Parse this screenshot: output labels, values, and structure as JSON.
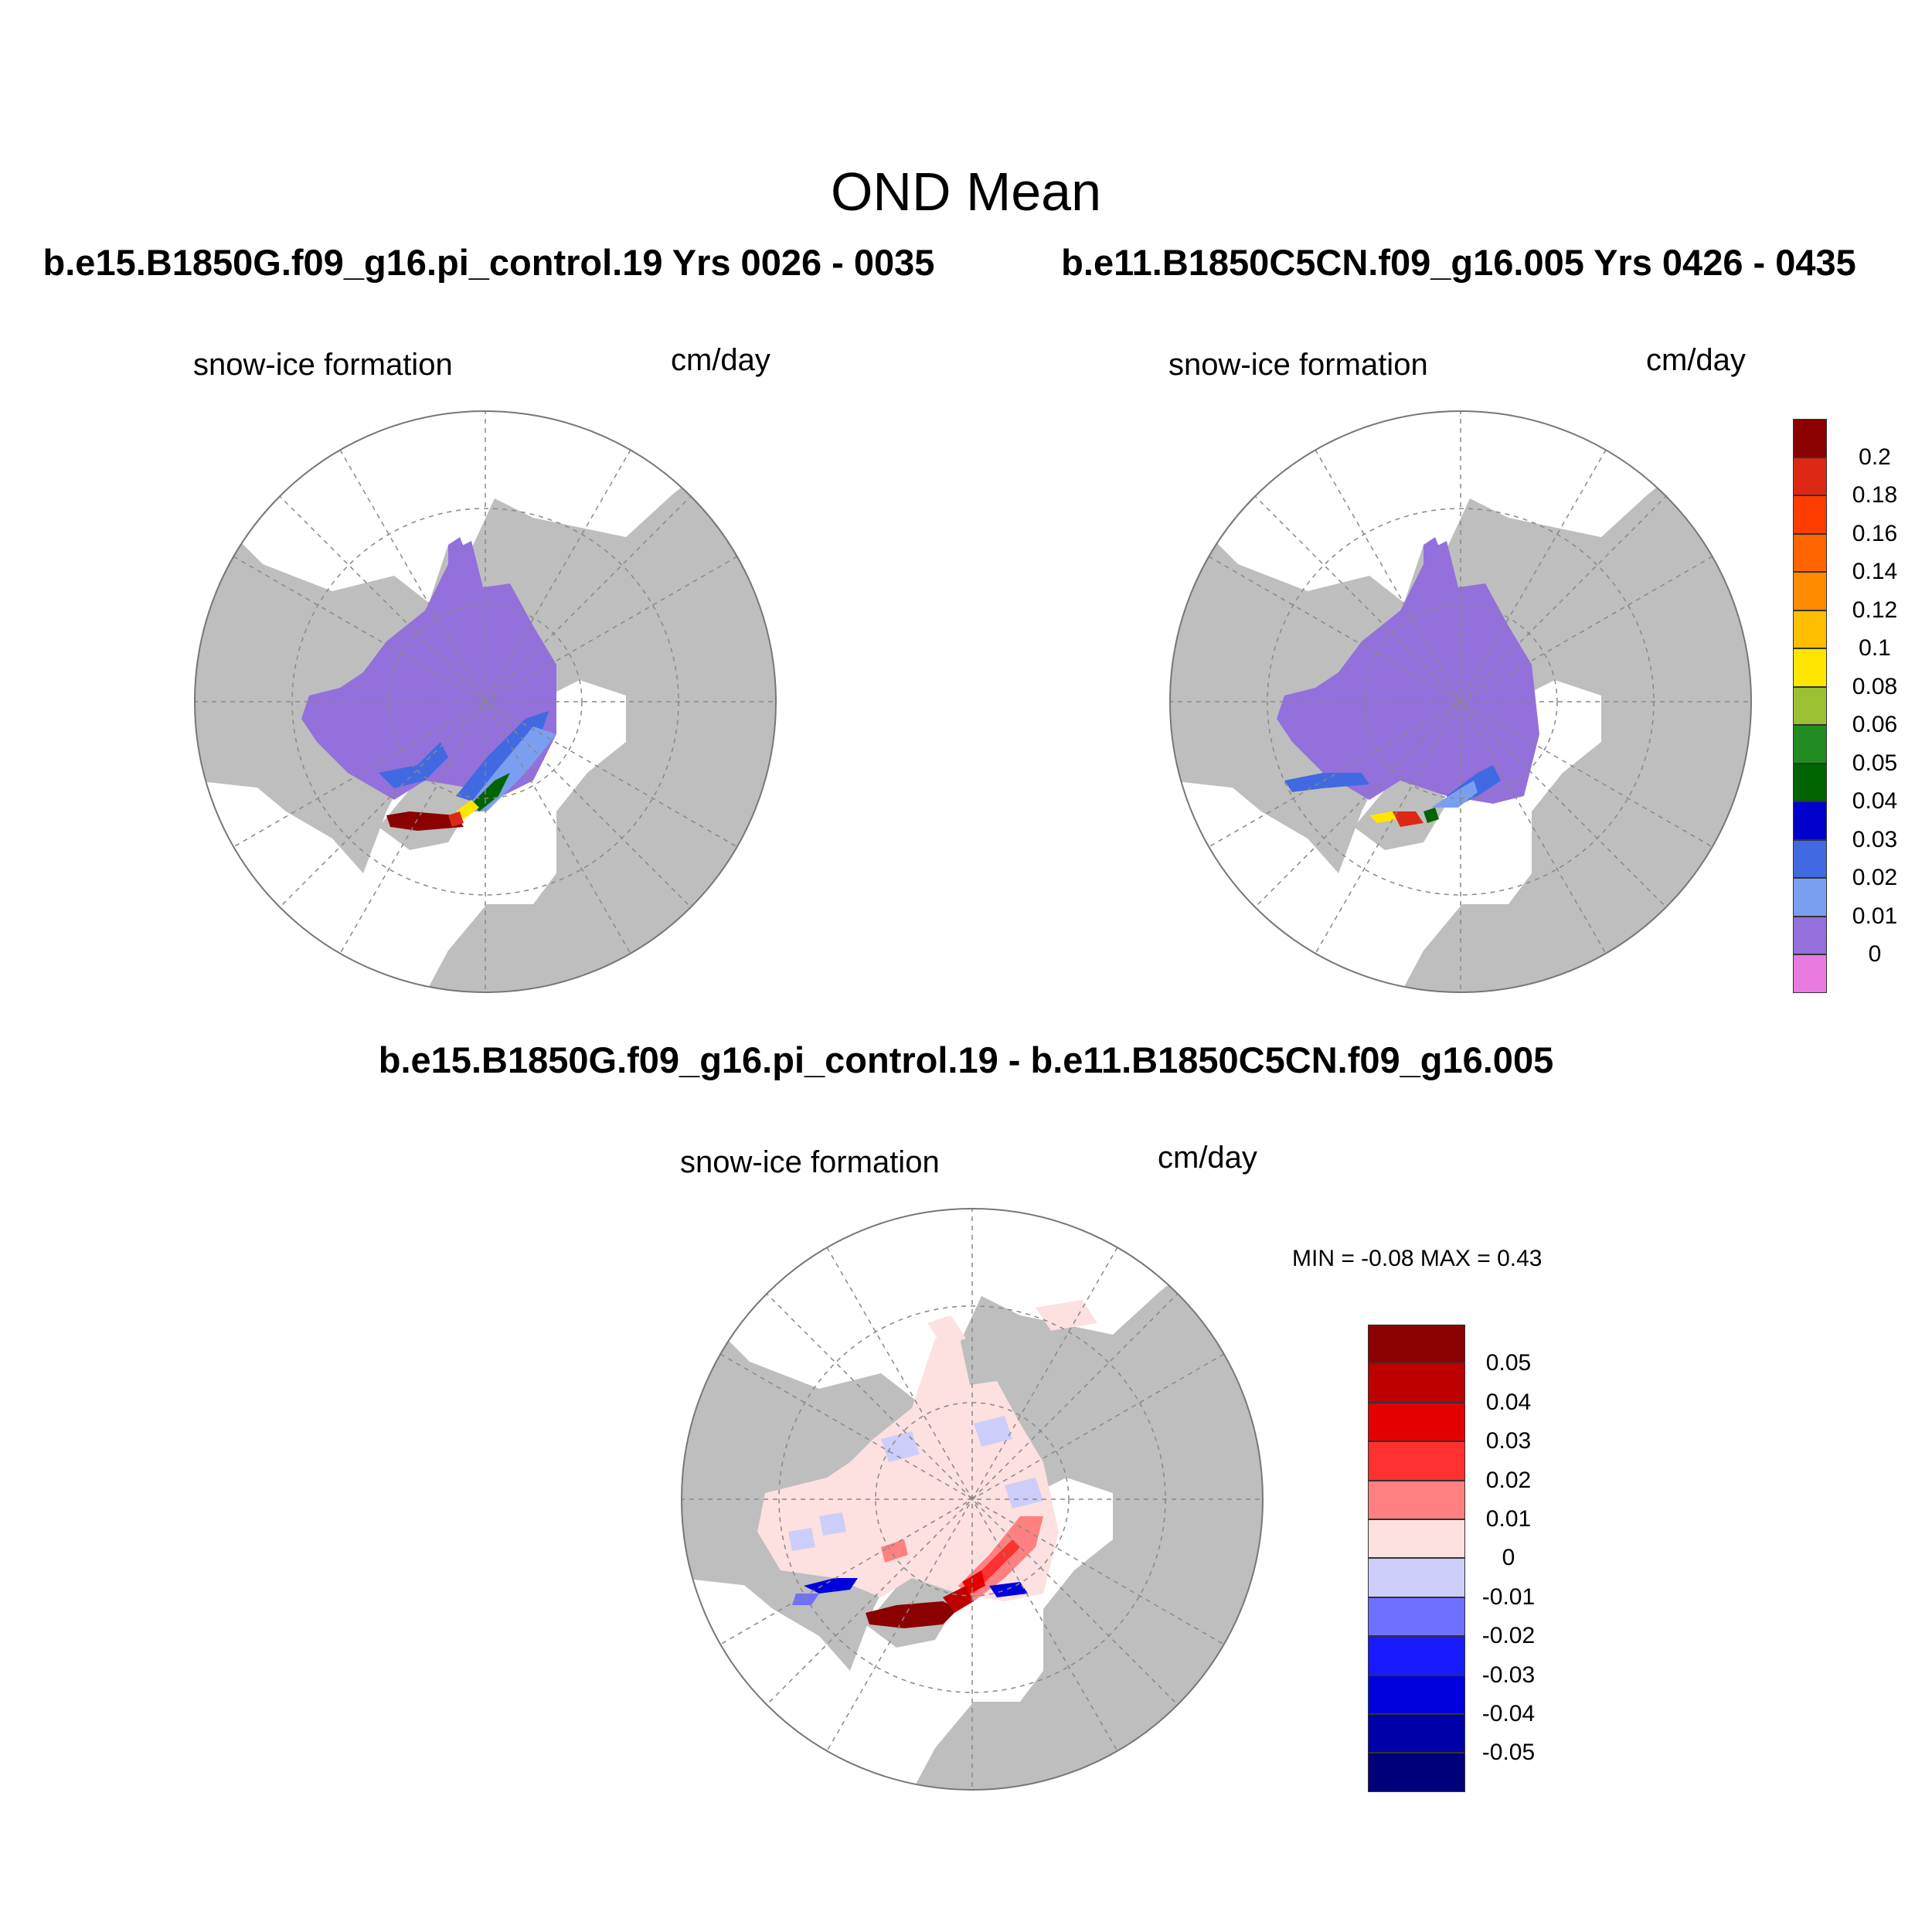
{
  "header": {
    "title": "OND Mean",
    "left_panel": "b.e15.B1850G.f09_g16.pi_control.19  Yrs 0026 - 0035",
    "right_panel": "b.e11.B1850C5CN.f09_g16.005  Yrs 0426 - 0435",
    "difference_panel": "b.e15.B1850G.f09_g16.pi_control.19 - b.e11.B1850C5CN.f09_g16.005"
  },
  "panels": {
    "left": {
      "variable": "snow-ice formation",
      "units": "cm/day"
    },
    "right": {
      "variable": "snow-ice formation",
      "units": "cm/day"
    },
    "diff": {
      "variable": "snow-ice formation",
      "units": "cm/day",
      "min_max": "MIN =  -0.08 MAX =   0.43"
    }
  },
  "colorbars": {
    "abs": {
      "labels": [
        "0.2",
        "0.18",
        "0.16",
        "0.14",
        "0.12",
        "0.1",
        "0.08",
        "0.06",
        "0.05",
        "0.04",
        "0.03",
        "0.02",
        "0.01",
        "0"
      ],
      "colors": [
        "#8b0000",
        "#dc2814",
        "#ff3c00",
        "#ff6400",
        "#ff8c00",
        "#ffbe00",
        "#ffe600",
        "#9cc034",
        "#228b22",
        "#006400",
        "#0000cd",
        "#4169e1",
        "#7b9ff0",
        "#9370db",
        "#e87ae0"
      ]
    },
    "diff": {
      "labels": [
        "0.05",
        "0.04",
        "0.03",
        "0.02",
        "0.01",
        "0",
        "-0.01",
        "-0.02",
        "-0.03",
        "-0.04",
        "-0.05"
      ],
      "colors": [
        "#8b0000",
        "#be0000",
        "#e40000",
        "#ff3030",
        "#ff8080",
        "#fde0e0",
        "#cdcdfa",
        "#7070ff",
        "#1a1aff",
        "#0000dd",
        "#0000a8",
        "#000078"
      ]
    }
  },
  "map_colors": {
    "land": "#bebebe",
    "ocean": "#ffffff",
    "ice_mean": "#9370db",
    "graticule": "#888888"
  }
}
